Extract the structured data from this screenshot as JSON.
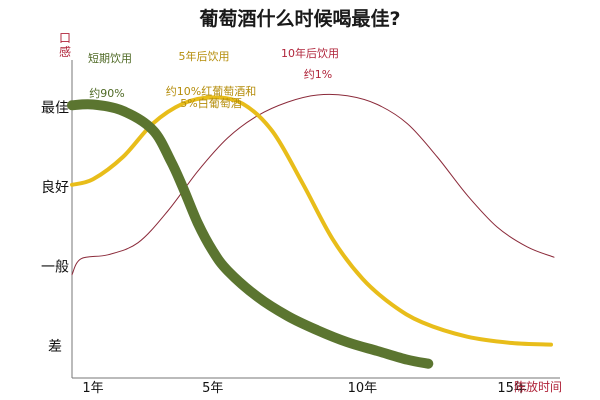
{
  "chart_data": {
    "type": "line",
    "title": "葡萄酒什么时候喝最佳?",
    "ylabel": "口感",
    "xlabel": "陈放时间",
    "x_ticks": [
      {
        "label": "1年",
        "value": 1
      },
      {
        "label": "5年",
        "value": 5
      },
      {
        "label": "10年",
        "value": 10
      },
      {
        "label": "15年",
        "value": 15
      }
    ],
    "y_ticks": [
      {
        "label": "差",
        "value": 0
      },
      {
        "label": "一般",
        "value": 1
      },
      {
        "label": "良好",
        "value": 2
      },
      {
        "label": "最佳",
        "value": 3
      }
    ],
    "xlim": [
      0.3,
      16.6
    ],
    "ylim": [
      -0.4,
      3.6
    ],
    "grid": false,
    "series": [
      {
        "name": "10年后饮用",
        "share_label": "约1%",
        "color": "#8b2a3a",
        "stroke": 1,
        "points": [
          [
            0.3,
            0.9
          ],
          [
            0.6,
            1.1
          ],
          [
            1.5,
            1.15
          ],
          [
            2.5,
            1.3
          ],
          [
            3.5,
            1.7
          ],
          [
            4.5,
            2.2
          ],
          [
            5.5,
            2.62
          ],
          [
            6.5,
            2.9
          ],
          [
            7.5,
            3.07
          ],
          [
            8.5,
            3.16
          ],
          [
            9.5,
            3.15
          ],
          [
            10.5,
            3.04
          ],
          [
            11.5,
            2.8
          ],
          [
            12.5,
            2.38
          ],
          [
            13.5,
            1.9
          ],
          [
            14.5,
            1.5
          ],
          [
            15.5,
            1.25
          ],
          [
            16.4,
            1.12
          ]
        ]
      },
      {
        "name": "5年后饮用",
        "share_label": "约10%红葡萄酒和5%白葡萄酒",
        "color": "#e8bd1a",
        "stroke": 4,
        "points": [
          [
            0.3,
            2.03
          ],
          [
            1,
            2.1
          ],
          [
            2,
            2.38
          ],
          [
            3,
            2.8
          ],
          [
            4,
            3.05
          ],
          [
            5,
            3.13
          ],
          [
            6,
            3.05
          ],
          [
            7,
            2.7
          ],
          [
            8,
            2.05
          ],
          [
            9,
            1.35
          ],
          [
            10,
            0.85
          ],
          [
            11,
            0.52
          ],
          [
            12,
            0.3
          ],
          [
            13.5,
            0.12
          ],
          [
            15,
            0.04
          ],
          [
            16.3,
            0.02
          ]
        ]
      },
      {
        "name": "短期饮用",
        "share_label": "约90%",
        "color": "#5b7530",
        "stroke": 10,
        "points": [
          [
            0.3,
            3.03
          ],
          [
            1,
            3.04
          ],
          [
            2,
            2.96
          ],
          [
            3,
            2.72
          ],
          [
            3.6,
            2.33
          ],
          [
            4,
            2.0
          ],
          [
            4.5,
            1.55
          ],
          [
            5,
            1.2
          ],
          [
            5.5,
            0.95
          ],
          [
            6.5,
            0.62
          ],
          [
            7.5,
            0.38
          ],
          [
            8.5,
            0.2
          ],
          [
            9.5,
            0.05
          ],
          [
            10.5,
            -0.06
          ],
          [
            11.5,
            -0.17
          ],
          [
            12.2,
            -0.22
          ]
        ]
      }
    ]
  }
}
